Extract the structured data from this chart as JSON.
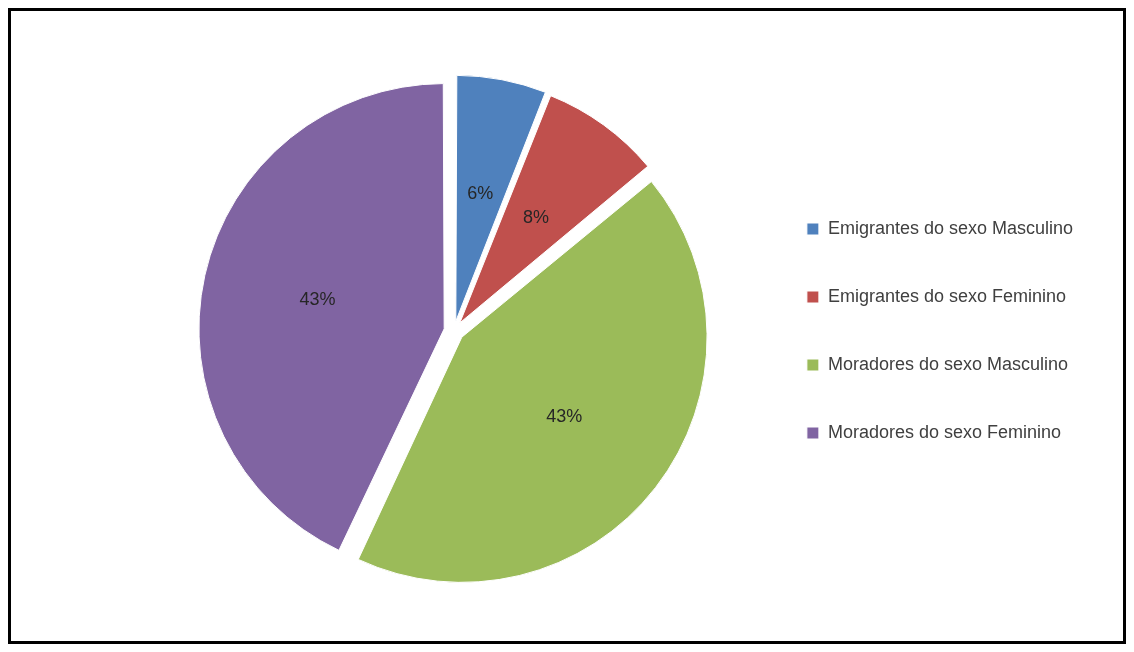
{
  "chart_data": {
    "type": "pie",
    "categories": [
      "Emigrantes do sexo Masculino",
      "Emigrantes do sexo Feminino",
      "Moradores do sexo Masculino",
      "Moradores do sexo Feminino"
    ],
    "values": [
      6,
      8,
      43,
      43
    ],
    "colors": [
      "#4f81bd",
      "#c0504d",
      "#9bbb59",
      "#8064a2"
    ],
    "value_labels": [
      "6%",
      "8%",
      "43%",
      "43%"
    ],
    "legend": "right"
  }
}
